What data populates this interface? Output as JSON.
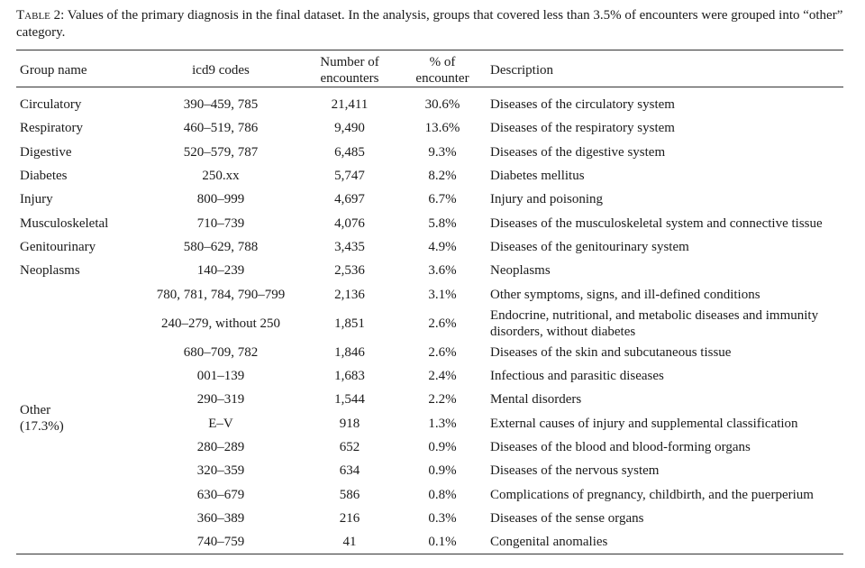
{
  "caption": {
    "label": "Table 2:",
    "text": " Values of the primary diagnosis in the final dataset. In the analysis, groups that covered less than 3.5% of encounters were grouped into “other” category."
  },
  "headers": {
    "group": "Group name",
    "icd9": "icd9 codes",
    "num_line1": "Number of",
    "num_line2": "encounters",
    "pct_line1": "% of",
    "pct_line2": "encounter",
    "desc": "Description"
  },
  "main_rows": [
    {
      "group": "Circulatory",
      "icd9": "390–459, 785",
      "num": "21,411",
      "pct": "30.6%",
      "desc": "Diseases of the circulatory system"
    },
    {
      "group": "Respiratory",
      "icd9": "460–519, 786",
      "num": "9,490",
      "pct": "13.6%",
      "desc": "Diseases of the respiratory system"
    },
    {
      "group": "Digestive",
      "icd9": "520–579, 787",
      "num": "6,485",
      "pct": "9.3%",
      "desc": "Diseases of the digestive system"
    },
    {
      "group": "Diabetes",
      "icd9": "250.xx",
      "num": "5,747",
      "pct": "8.2%",
      "desc": "Diabetes mellitus"
    },
    {
      "group": "Injury",
      "icd9": "800–999",
      "num": "4,697",
      "pct": "6.7%",
      "desc": "Injury and poisoning"
    },
    {
      "group": "Musculoskeletal",
      "icd9": "710–739",
      "num": "4,076",
      "pct": "5.8%",
      "desc": "Diseases of the musculoskeletal system and connective tissue"
    },
    {
      "group": "Genitourinary",
      "icd9": "580–629, 788",
      "num": "3,435",
      "pct": "4.9%",
      "desc": "Diseases of the genitourinary system"
    },
    {
      "group": "Neoplasms",
      "icd9": "140–239",
      "num": "2,536",
      "pct": "3.6%",
      "desc": "Neoplasms"
    }
  ],
  "other_group": {
    "name": "Other",
    "pct": "(17.3%)"
  },
  "other_rows": [
    {
      "icd9": "780, 781, 784, 790–799",
      "num": "2,136",
      "pct": "3.1%",
      "desc": "Other symptoms, signs, and ill-defined conditions"
    },
    {
      "icd9": "240–279, without 250",
      "num": "1,851",
      "pct": "2.6%",
      "desc_line1": "Endocrine, nutritional, and metabolic diseases and immunity",
      "desc_line2": "disorders, without diabetes"
    },
    {
      "icd9": "680–709, 782",
      "num": "1,846",
      "pct": "2.6%",
      "desc": "Diseases of the skin and subcutaneous tissue"
    },
    {
      "icd9": "001–139",
      "num": "1,683",
      "pct": "2.4%",
      "desc": "Infectious and parasitic diseases"
    },
    {
      "icd9": "290–319",
      "num": "1,544",
      "pct": "2.2%",
      "desc": "Mental disorders"
    },
    {
      "icd9": "E–V",
      "num": "918",
      "pct": "1.3%",
      "desc": "External causes of injury and supplemental classification"
    },
    {
      "icd9": "280–289",
      "num": "652",
      "pct": "0.9%",
      "desc": "Diseases of the blood and blood-forming organs"
    },
    {
      "icd9": "320–359",
      "num": "634",
      "pct": "0.9%",
      "desc": "Diseases of the nervous system"
    },
    {
      "icd9": "630–679",
      "num": "586",
      "pct": "0.8%",
      "desc": "Complications of pregnancy, childbirth, and the puerperium"
    },
    {
      "icd9": "360–389",
      "num": "216",
      "pct": "0.3%",
      "desc": "Diseases of the sense organs"
    },
    {
      "icd9": "740–759",
      "num": "41",
      "pct": "0.1%",
      "desc": "Congenital anomalies"
    }
  ]
}
